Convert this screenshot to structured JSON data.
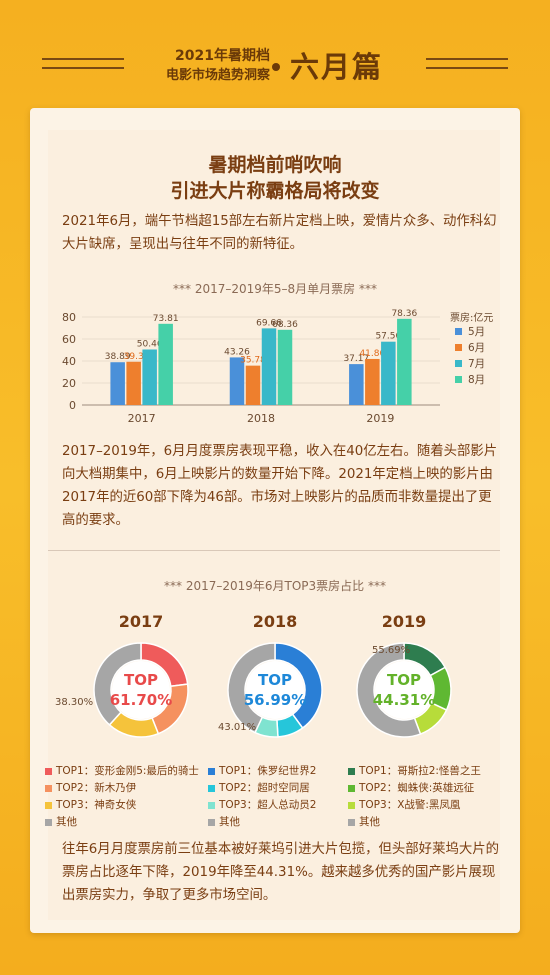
{
  "header": {
    "line1": "2021年暑期档",
    "line2": "电影市场趋势洞察",
    "big": "六月篇"
  },
  "section1": {
    "title1": "暑期档前哨吹响",
    "title2": "引进大片称霸格局将改变",
    "intro": "2021年6月，端午节档超15部左右新片定档上映，爱情片众多、动作科幻大片缺席，呈现出与往年不同的新特征。",
    "chart_title": "***  2017–2019年5–8月单月票房  ***",
    "analysis": "2017–2019年，6月月度票房表现平稳，收入在40亿左右。随着头部影片向大档期集中，6月上映影片的数量开始下降。2021年定档上映的影片由2017年的近60部下降为46部。市场对上映影片的品质而非数量提出了更高的要求。"
  },
  "section2": {
    "chart_title": "***  2017–2019年6月TOP3票房占比  ***",
    "conclusion": "往年6月月度票房前三位基本被好莱坞引进大片包揽，但头部好莱坞大片的票房占比逐年下降，2019年降至44.31%。越来越多优秀的国产影片展现出票房实力，争取了更多市场空间。"
  },
  "chart_data": [
    {
      "type": "bar",
      "categories": [
        "2017",
        "2018",
        "2019"
      ],
      "unit_label": "票房:亿元",
      "ylim": [
        0,
        80
      ],
      "yticks": [
        "0",
        "20",
        "40",
        "60",
        "80"
      ],
      "series": [
        {
          "name": "5月",
          "color": "#4a90d9",
          "values": [
            38.89,
            43.26,
            37.17
          ],
          "labels": [
            "38.89",
            "43.26",
            "37.17"
          ],
          "label_color": "#6b4a30"
        },
        {
          "name": "6月",
          "color": "#ee7f2d",
          "values": [
            39.3,
            35.78,
            41.86
          ],
          "labels": [
            "39.3",
            "35.78",
            "41.86"
          ],
          "label_color": "#e06a1a"
        },
        {
          "name": "7月",
          "color": "#39b8c9",
          "values": [
            50.46,
            69.66,
            57.56
          ],
          "labels": [
            "50.46",
            "69.66",
            "57.56"
          ],
          "label_color": "#6b4a30"
        },
        {
          "name": "8月",
          "color": "#45d0a8",
          "values": [
            73.81,
            68.36,
            78.36
          ],
          "labels": [
            "73.81",
            "68.36",
            "78.36"
          ],
          "label_color": "#6b4a30"
        }
      ]
    },
    {
      "type": "pie",
      "charts": [
        {
          "year": "2017",
          "top_label": "TOP",
          "top_pct": "61.70%",
          "accent": "#e84a4a",
          "other_label": "38.30%",
          "slices": [
            {
              "name": "TOP1：变形金刚5:最后的骑士",
              "value": 23.0,
              "color": "#ef5b5b"
            },
            {
              "name": "TOP2：新木乃伊",
              "value": 21.0,
              "color": "#f5915f"
            },
            {
              "name": "TOP3：神奇女侠",
              "value": 17.7,
              "color": "#f5c33b"
            },
            {
              "name": "其他",
              "value": 38.3,
              "color": "#a6a6a6"
            }
          ]
        },
        {
          "year": "2018",
          "top_label": "TOP",
          "top_pct": "56.99%",
          "accent": "#1e88d8",
          "other_label": "43.01%",
          "slices": [
            {
              "name": "TOP1：侏罗纪世界2",
              "value": 40.0,
              "color": "#2a7fd6"
            },
            {
              "name": "TOP2：超时空同居",
              "value": 9.0,
              "color": "#26c6da"
            },
            {
              "name": "TOP3：超人总动员2",
              "value": 8.0,
              "color": "#7fe3d0"
            },
            {
              "name": "其他",
              "value": 43.01,
              "color": "#a6a6a6"
            }
          ]
        },
        {
          "year": "2019",
          "top_label": "TOP",
          "top_pct": "44.31%",
          "accent": "#63b22a",
          "other_label": "55.69%",
          "slices": [
            {
              "name": "TOP1：哥斯拉2:怪兽之王",
              "value": 17.0,
              "color": "#2e7d4f"
            },
            {
              "name": "TOP2：蜘蛛侠:英雄远征",
              "value": 15.0,
              "color": "#5fb832"
            },
            {
              "name": "TOP3：X战警:黑凤凰",
              "value": 12.31,
              "color": "#b7dc3a"
            },
            {
              "name": "其他",
              "value": 55.69,
              "color": "#a6a6a6"
            }
          ]
        }
      ]
    }
  ]
}
